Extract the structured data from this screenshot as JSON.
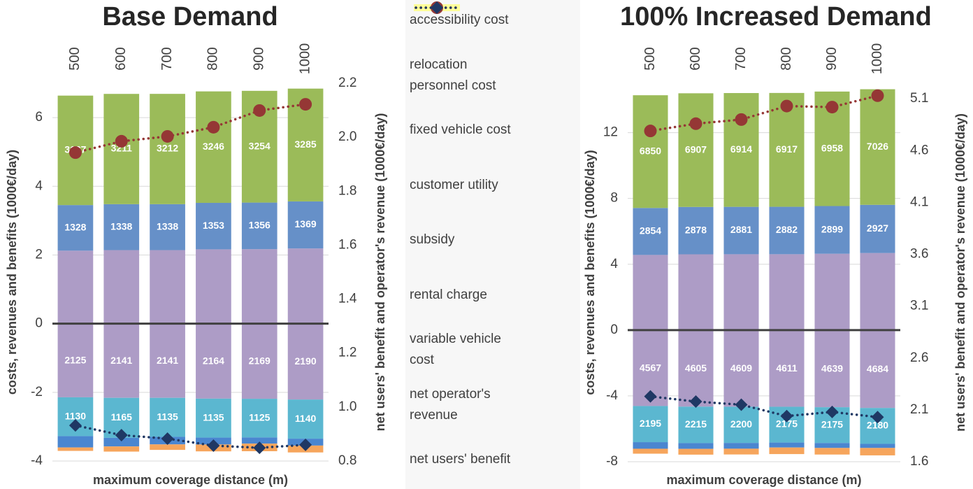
{
  "chart_data": [
    {
      "type": "bar",
      "title": "Base Demand",
      "categories": [
        "500",
        "600",
        "700",
        "800",
        "900",
        "1000"
      ],
      "xlabel": "maximum coverage distance (m)",
      "ylabel": "costs, revenues and benefits (1000€/day)",
      "y2label": "net users' benefit and operator's revenue (1000€/day)",
      "ylim": [
        -4,
        7
      ],
      "yticks": [
        -4,
        -2,
        0,
        2,
        4,
        6
      ],
      "y2lim": [
        0.8,
        2.2
      ],
      "y2ticks": [
        0.8,
        {
          "value": 1,
          "label": "1.0"
        },
        1.2,
        1.4,
        1.6,
        1.8,
        {
          "value": 2,
          "label": "2.0"
        },
        2.2
      ],
      "grid": true,
      "series": [
        {
          "name": "accessibility cost",
          "color": "#f6a55c",
          "values": [
            -0.1,
            -0.15,
            -0.16,
            -0.2,
            -0.22,
            -0.2
          ]
        },
        {
          "name": "relocation personnel cost",
          "color": "#4a86d0",
          "values": [
            -0.33,
            -0.25,
            -0.22,
            -0.2,
            -0.18,
            -0.2
          ]
        },
        {
          "name": "fixed vehicle cost",
          "color": "#5bb7d0",
          "data_labels": true,
          "values": [
            -1.13,
            -1.165,
            -1.135,
            -1.135,
            -1.125,
            -1.14
          ],
          "value_labels": [
            "1130",
            "1165",
            "1135",
            "1135",
            "1125",
            "1140"
          ]
        },
        {
          "name": "customer utility",
          "color": "#9bbb59",
          "data_labels": true,
          "values": [
            3.187,
            3.211,
            3.212,
            3.246,
            3.254,
            3.285
          ],
          "value_labels": [
            "3187",
            "3211",
            "3212",
            "3246",
            "3254",
            "3285"
          ]
        },
        {
          "name": "subsidy",
          "color": "#6690c8",
          "data_labels": true,
          "values": [
            1.328,
            1.338,
            1.338,
            1.353,
            1.356,
            1.369
          ],
          "value_labels": [
            "1328",
            "1338",
            "1338",
            "1353",
            "1356",
            "1369"
          ]
        },
        {
          "name": "rental charge",
          "color": "#ad9cc6",
          "both_sides": true,
          "data_labels": true,
          "values": [
            2.125,
            2.141,
            2.141,
            2.164,
            2.169,
            2.19
          ],
          "value_labels": [
            "2125",
            "2141",
            "2141",
            "2164",
            "2169",
            "2190"
          ]
        },
        {
          "name": "variable vehicle cost",
          "color": "#ffff99",
          "values": [
            -0.02,
            -0.02,
            -0.02,
            -0.02,
            -0.02,
            -0.02
          ]
        },
        {
          "name": "net operator's revenue",
          "type": "line",
          "axis": "y2",
          "marker": "circle",
          "color": "#953735",
          "values": [
            1.943,
            1.985,
            2.003,
            2.037,
            2.099,
            2.122
          ]
        },
        {
          "name": "net users' benefit",
          "type": "line",
          "axis": "y2",
          "marker": "diamond",
          "color": "#1f3864",
          "values": [
            0.932,
            0.896,
            0.883,
            0.857,
            0.849,
            0.86
          ]
        }
      ]
    },
    {
      "type": "bar",
      "title": "100% Increased Demand",
      "categories": [
        "500",
        "600",
        "700",
        "800",
        "900",
        "1000"
      ],
      "xlabel": "maximum coverage distance (m)",
      "ylabel": "costs, revenues and benefits (1000€/day)",
      "y2label": "net users' benefit and operator's revenue (1000€/day)",
      "ylim": [
        -8,
        15
      ],
      "yticks": [
        -8,
        -4,
        0,
        4,
        8,
        12
      ],
      "y2lim": [
        1.6,
        5.25
      ],
      "y2ticks": [
        1.6,
        2.1,
        2.6,
        3.1,
        3.6,
        4.1,
        4.6,
        5.1
      ],
      "grid": true,
      "series": [
        {
          "color": "#f6a55c",
          "values": [
            -0.3,
            -0.35,
            -0.35,
            -0.4,
            -0.4,
            -0.45
          ]
        },
        {
          "color": "#4a86d0",
          "values": [
            -0.4,
            -0.35,
            -0.35,
            -0.3,
            -0.3,
            -0.25
          ]
        },
        {
          "color": "#5bb7d0",
          "data_labels": true,
          "values": [
            -2.195,
            -2.215,
            -2.2,
            -2.175,
            -2.175,
            -2.18
          ],
          "value_labels": [
            "2195",
            "2215",
            "2200",
            "2175",
            "2175",
            "2180"
          ]
        },
        {
          "color": "#9bbb59",
          "data_labels": true,
          "values": [
            6.85,
            6.907,
            6.914,
            6.917,
            6.958,
            7.026
          ],
          "value_labels": [
            "6850",
            "6907",
            "6914",
            "6917",
            "6958",
            "7026"
          ]
        },
        {
          "color": "#6690c8",
          "data_labels": true,
          "values": [
            2.854,
            2.878,
            2.881,
            2.882,
            2.899,
            2.927
          ],
          "value_labels": [
            "2854",
            "2878",
            "2881",
            "2882",
            "2899",
            "2927"
          ]
        },
        {
          "color": "#ad9cc6",
          "both_sides": true,
          "data_labels": true,
          "values": [
            4.567,
            4.605,
            4.609,
            4.611,
            4.639,
            4.684
          ],
          "value_labels": [
            "4567",
            "4605",
            "4609",
            "4611",
            "4639",
            "4684"
          ]
        },
        {
          "color": "#ffff99",
          "values": [
            -0.05,
            -0.05,
            -0.05,
            -0.05,
            -0.05,
            -0.05
          ]
        },
        {
          "type": "line",
          "axis": "y2",
          "marker": "circle",
          "color": "#953735",
          "values": [
            4.79,
            4.86,
            4.9,
            5.03,
            5.02,
            5.13
          ]
        },
        {
          "type": "line",
          "axis": "y2",
          "marker": "diamond",
          "color": "#1f3864",
          "values": [
            2.23,
            2.18,
            2.15,
            2.04,
            2.08,
            2.03
          ]
        }
      ]
    }
  ]
}
